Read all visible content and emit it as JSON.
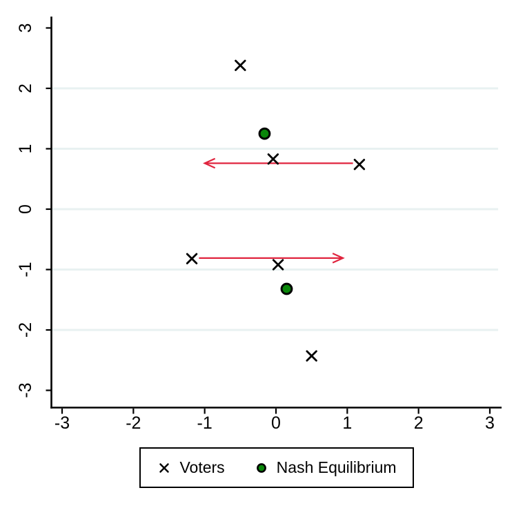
{
  "chart_data": {
    "type": "scatter",
    "title": "",
    "xlabel": "",
    "ylabel": "",
    "xlim": [
      -3,
      3
    ],
    "ylim": [
      -3,
      3
    ],
    "xticks": [
      -3,
      -2,
      -1,
      0,
      1,
      2,
      3
    ],
    "yticks": [
      -3,
      -2,
      -1,
      0,
      1,
      2,
      3
    ],
    "gridlines_y": [
      -2,
      -1,
      0,
      1,
      2
    ],
    "grid_on": true,
    "grid_color": "#e8f1f1",
    "axis_color": "#000000",
    "background_color": "#ffffff",
    "series": [
      {
        "name": "Voters",
        "marker": "x",
        "color": "#000000",
        "points": [
          {
            "x": -0.5,
            "y": 2.38
          },
          {
            "x": -0.04,
            "y": 0.83
          },
          {
            "x": 1.17,
            "y": 0.74
          },
          {
            "x": -1.18,
            "y": -0.82
          },
          {
            "x": 0.03,
            "y": -0.92
          },
          {
            "x": 0.5,
            "y": -2.43
          }
        ]
      },
      {
        "name": "Nash Equilibrium",
        "marker": "circle",
        "color": "#0a870a",
        "outline_color": "#000000",
        "points": [
          {
            "x": -0.16,
            "y": 1.25
          },
          {
            "x": 0.15,
            "y": -1.32
          }
        ]
      }
    ],
    "annotations": {
      "arrow_color": "#e0243e",
      "arrows": [
        {
          "from": {
            "x": 1.08,
            "y": 0.76
          },
          "to": {
            "x": -1.0,
            "y": 0.76
          }
        },
        {
          "from": {
            "x": -1.08,
            "y": -0.81
          },
          "to": {
            "x": 0.94,
            "y": -0.81
          }
        }
      ]
    },
    "legend": {
      "position": "bottom",
      "entries": [
        {
          "label": "Voters",
          "marker": "x",
          "color": "#000000"
        },
        {
          "label": "Nash Equilibrium",
          "marker": "circle",
          "color": "#0a870a"
        }
      ]
    }
  }
}
